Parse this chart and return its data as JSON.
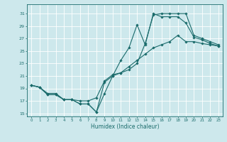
{
  "title": "",
  "xlabel": "Humidex (Indice chaleur)",
  "ylabel": "",
  "bg_color": "#cde8ec",
  "grid_color": "#ffffff",
  "line_color": "#1a6b6b",
  "xlim": [
    -0.5,
    23.5
  ],
  "ylim": [
    14.5,
    32.5
  ],
  "xticks": [
    0,
    1,
    2,
    3,
    4,
    5,
    6,
    7,
    8,
    9,
    10,
    11,
    12,
    13,
    14,
    15,
    16,
    17,
    18,
    19,
    20,
    21,
    22,
    23
  ],
  "yticks": [
    15,
    17,
    19,
    21,
    23,
    25,
    27,
    29,
    31
  ],
  "line1_x": [
    0,
    1,
    2,
    3,
    4,
    5,
    6,
    7,
    8,
    9,
    10,
    11,
    12,
    13,
    14,
    15,
    16,
    17,
    18,
    19,
    20,
    21,
    22,
    23
  ],
  "line1_y": [
    19.5,
    19.2,
    18.0,
    18.0,
    17.2,
    17.2,
    16.5,
    16.5,
    15.2,
    18.2,
    21.0,
    23.5,
    25.5,
    29.2,
    26.0,
    31.0,
    30.5,
    30.5,
    30.5,
    29.5,
    27.2,
    26.8,
    26.2,
    25.8
  ],
  "line2_x": [
    0,
    1,
    2,
    3,
    4,
    5,
    6,
    7,
    8,
    9,
    10,
    11,
    12,
    13,
    14,
    15,
    16,
    17,
    18,
    19,
    20,
    21,
    22,
    23
  ],
  "line2_y": [
    19.5,
    19.2,
    18.2,
    18.2,
    17.2,
    17.2,
    17.0,
    17.0,
    17.5,
    20.2,
    21.2,
    21.5,
    22.0,
    23.0,
    26.2,
    30.8,
    31.0,
    31.0,
    31.0,
    31.0,
    27.5,
    27.0,
    26.5,
    26.0
  ],
  "line3_x": [
    0,
    1,
    2,
    3,
    4,
    5,
    6,
    7,
    8,
    9,
    10,
    11,
    12,
    13,
    14,
    15,
    16,
    17,
    18,
    19,
    20,
    21,
    22,
    23
  ],
  "line3_y": [
    19.5,
    19.2,
    18.0,
    18.0,
    17.2,
    17.2,
    16.5,
    16.5,
    15.2,
    20.0,
    21.0,
    21.5,
    22.5,
    23.5,
    24.5,
    25.5,
    26.0,
    26.5,
    27.5,
    26.5,
    26.5,
    26.2,
    26.0,
    25.8
  ]
}
